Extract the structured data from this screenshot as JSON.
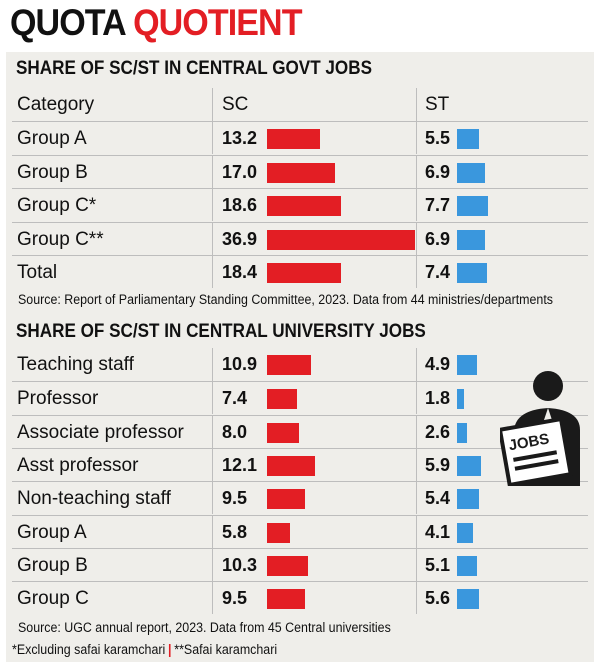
{
  "title": {
    "part1": "QUOTA",
    "part2": "QUOTIENT"
  },
  "sections": [
    {
      "heading": "SHARE OF SC/ST IN CENTRAL GOVT JOBS",
      "columns": {
        "category": "Category",
        "sc": "SC",
        "st": "ST"
      },
      "rows": [
        {
          "category": "Group A",
          "sc": "13.2",
          "st": "5.5"
        },
        {
          "category": "Group B",
          "sc": "17.0",
          "st": "6.9"
        },
        {
          "category": "Group C*",
          "sc": "18.6",
          "st": "7.7"
        },
        {
          "category": "Group C**",
          "sc": "36.9",
          "st": "6.9"
        },
        {
          "category": "Total",
          "sc": "18.4",
          "st": "7.4"
        }
      ],
      "source": "Source: Report of Parliamentary Standing Committee, 2023. Data from 44 ministries/departments"
    },
    {
      "heading": "SHARE OF SC/ST IN CENTRAL UNIVERSITY JOBS",
      "rows": [
        {
          "category": "Teaching staff",
          "sc": "10.9",
          "st": "4.9"
        },
        {
          "category": "Professor",
          "sc": "7.4",
          "st": "1.8"
        },
        {
          "category": "Associate professor",
          "sc": "8.0",
          "st": "2.6"
        },
        {
          "category": "Asst professor",
          "sc": "12.1",
          "st": "5.9"
        },
        {
          "category": "Non-teaching staff",
          "sc": "9.5",
          "st": "5.4"
        },
        {
          "category": "Group A",
          "sc": "5.8",
          "st": "4.1"
        },
        {
          "category": "Group B",
          "sc": "10.3",
          "st": "5.1"
        },
        {
          "category": "Group C",
          "sc": "9.5",
          "st": "5.6"
        }
      ],
      "source": "Source: UGC annual report, 2023. Data from 45 Central universities"
    }
  ],
  "notes": {
    "left": "*Excluding safai karamchari",
    "right": "**Safai karamchari"
  },
  "icon": {
    "name": "jobs-newspaper-person-icon",
    "label": "JOBS"
  },
  "colors": {
    "sc": "#e31e24",
    "st": "#3a97dd",
    "accent": "#e31e24"
  },
  "chart_data": [
    {
      "type": "bar",
      "title": "SHARE OF SC/ST IN CENTRAL GOVT JOBS",
      "categories": [
        "Group A",
        "Group B",
        "Group C*",
        "Group C**",
        "Total"
      ],
      "series": [
        {
          "name": "SC",
          "values": [
            13.2,
            17.0,
            18.6,
            36.9,
            18.4
          ]
        },
        {
          "name": "ST",
          "values": [
            5.5,
            6.9,
            7.7,
            6.9,
            7.4
          ]
        }
      ]
    },
    {
      "type": "bar",
      "title": "SHARE OF SC/ST IN CENTRAL UNIVERSITY JOBS",
      "categories": [
        "Teaching staff",
        "Professor",
        "Associate professor",
        "Asst professor",
        "Non-teaching staff",
        "Group A",
        "Group B",
        "Group C"
      ],
      "series": [
        {
          "name": "SC",
          "values": [
            10.9,
            7.4,
            8.0,
            12.1,
            9.5,
            5.8,
            10.3,
            9.5
          ]
        },
        {
          "name": "ST",
          "values": [
            4.9,
            1.8,
            2.6,
            5.9,
            5.4,
            4.1,
            5.1,
            5.6
          ]
        }
      ]
    }
  ]
}
